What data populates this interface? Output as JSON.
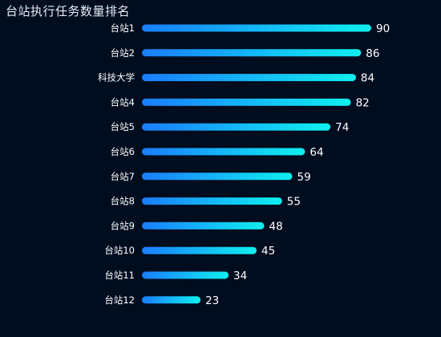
{
  "chart_data": {
    "type": "bar",
    "orientation": "horizontal",
    "title": "台站执行任务数量排名",
    "categories": [
      "台站1",
      "台站2",
      "科技大学",
      "台站4",
      "台站5",
      "台站6",
      "台站7",
      "台站8",
      "台站9",
      "台站10",
      "台站11",
      "台站12"
    ],
    "values": [
      90,
      86,
      84,
      82,
      74,
      64,
      59,
      55,
      48,
      45,
      34,
      23
    ],
    "xlim": [
      0,
      90
    ],
    "grid": false,
    "legend": "none",
    "colors": {
      "bar_start": "#1a7dff",
      "bar_end": "#0ff0ee",
      "background": "#000d1f",
      "text": "#ffffff"
    }
  }
}
